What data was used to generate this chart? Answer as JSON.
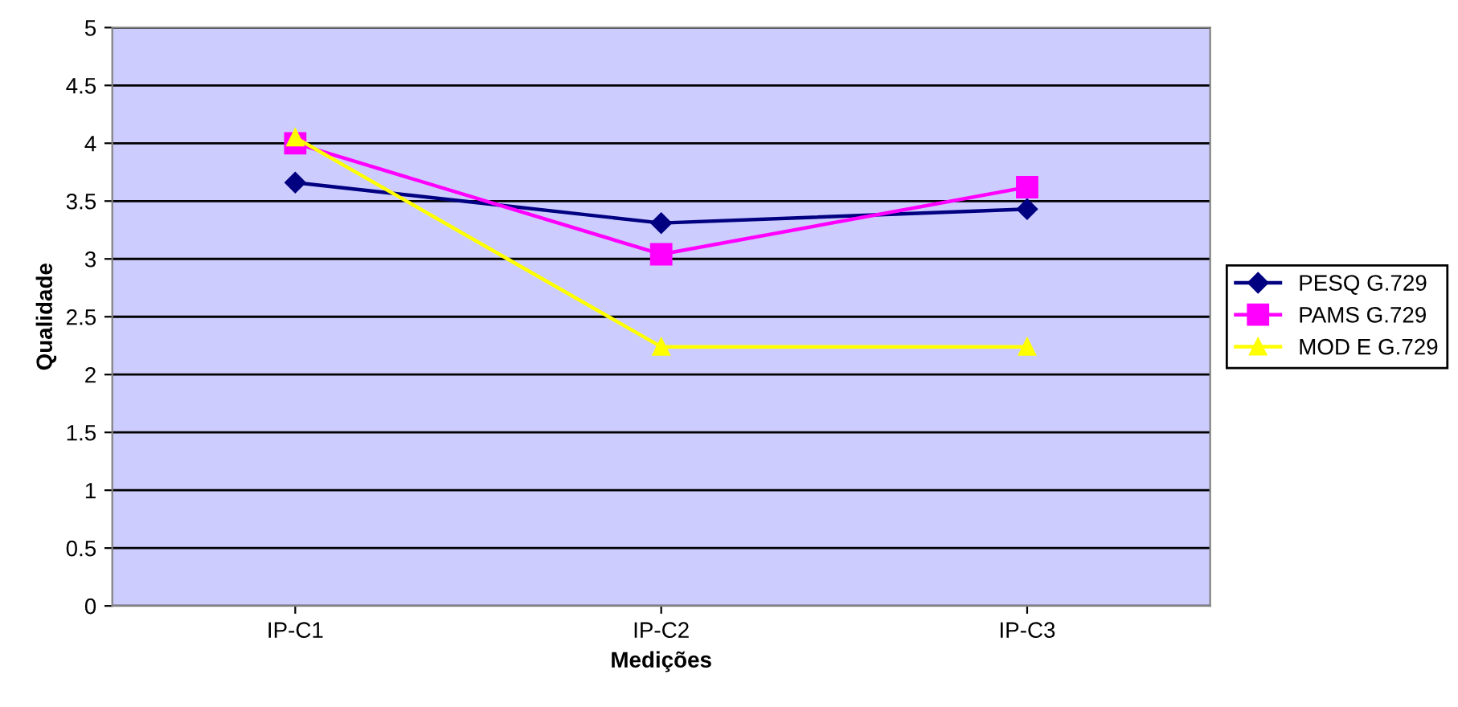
{
  "chart_data": {
    "type": "line",
    "xlabel": "Medições",
    "ylabel": "Qualidade",
    "categories": [
      "IP-C1",
      "IP-C2",
      "IP-C3"
    ],
    "series": [
      {
        "name": "PESQ G.729",
        "color": "#000080",
        "marker": "diamond",
        "values": [
          3.66,
          3.31,
          3.43
        ]
      },
      {
        "name": "PAMS G.729",
        "color": "#ff00ff",
        "marker": "square",
        "values": [
          4.0,
          3.04,
          3.62
        ]
      },
      {
        "name": "MOD E G.729",
        "color": "#ffff00",
        "marker": "triangle",
        "values": [
          4.05,
          2.24,
          2.24
        ]
      }
    ],
    "ylim": [
      0,
      5
    ],
    "yticks": [
      0,
      0.5,
      1,
      1.5,
      2,
      2.5,
      3,
      3.5,
      4,
      4.5,
      5
    ],
    "grid": "y",
    "legend": "right",
    "line_style": "solid"
  }
}
